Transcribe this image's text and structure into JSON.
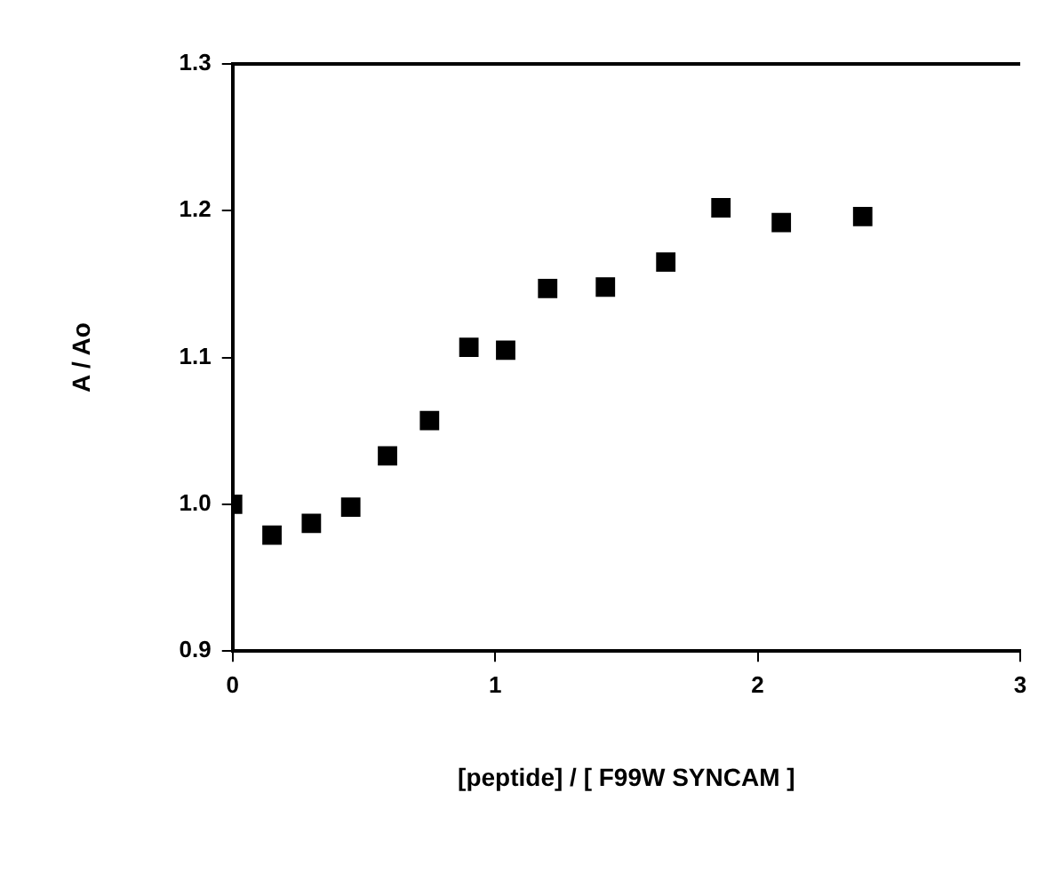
{
  "chart_data": {
    "type": "scatter",
    "xlabel": "[peptide] / [ F99W SYNCAM ]",
    "ylabel": "A / Ao",
    "x": [
      0,
      0.15,
      0.3,
      0.45,
      0.59,
      0.75,
      0.9,
      1.04,
      1.2,
      1.42,
      1.65,
      1.86,
      2.09,
      2.4
    ],
    "series": [
      {
        "color": "#000000",
        "values": [
          1.0,
          0.979,
          0.987,
          0.998,
          1.033,
          1.057,
          1.107,
          1.105,
          1.147,
          1.148,
          1.165,
          1.202,
          1.192,
          1.196
        ]
      }
    ],
    "xlim": [
      0,
      3
    ],
    "xticks": [
      0,
      1,
      2,
      3
    ],
    "ylim": [
      0.9,
      1.3
    ],
    "yticks": [
      0.9,
      {
        "value": 1,
        "label": "1.0"
      },
      1.1,
      1.2,
      1.3
    ],
    "grid": false,
    "legend": false,
    "marker": "square"
  }
}
